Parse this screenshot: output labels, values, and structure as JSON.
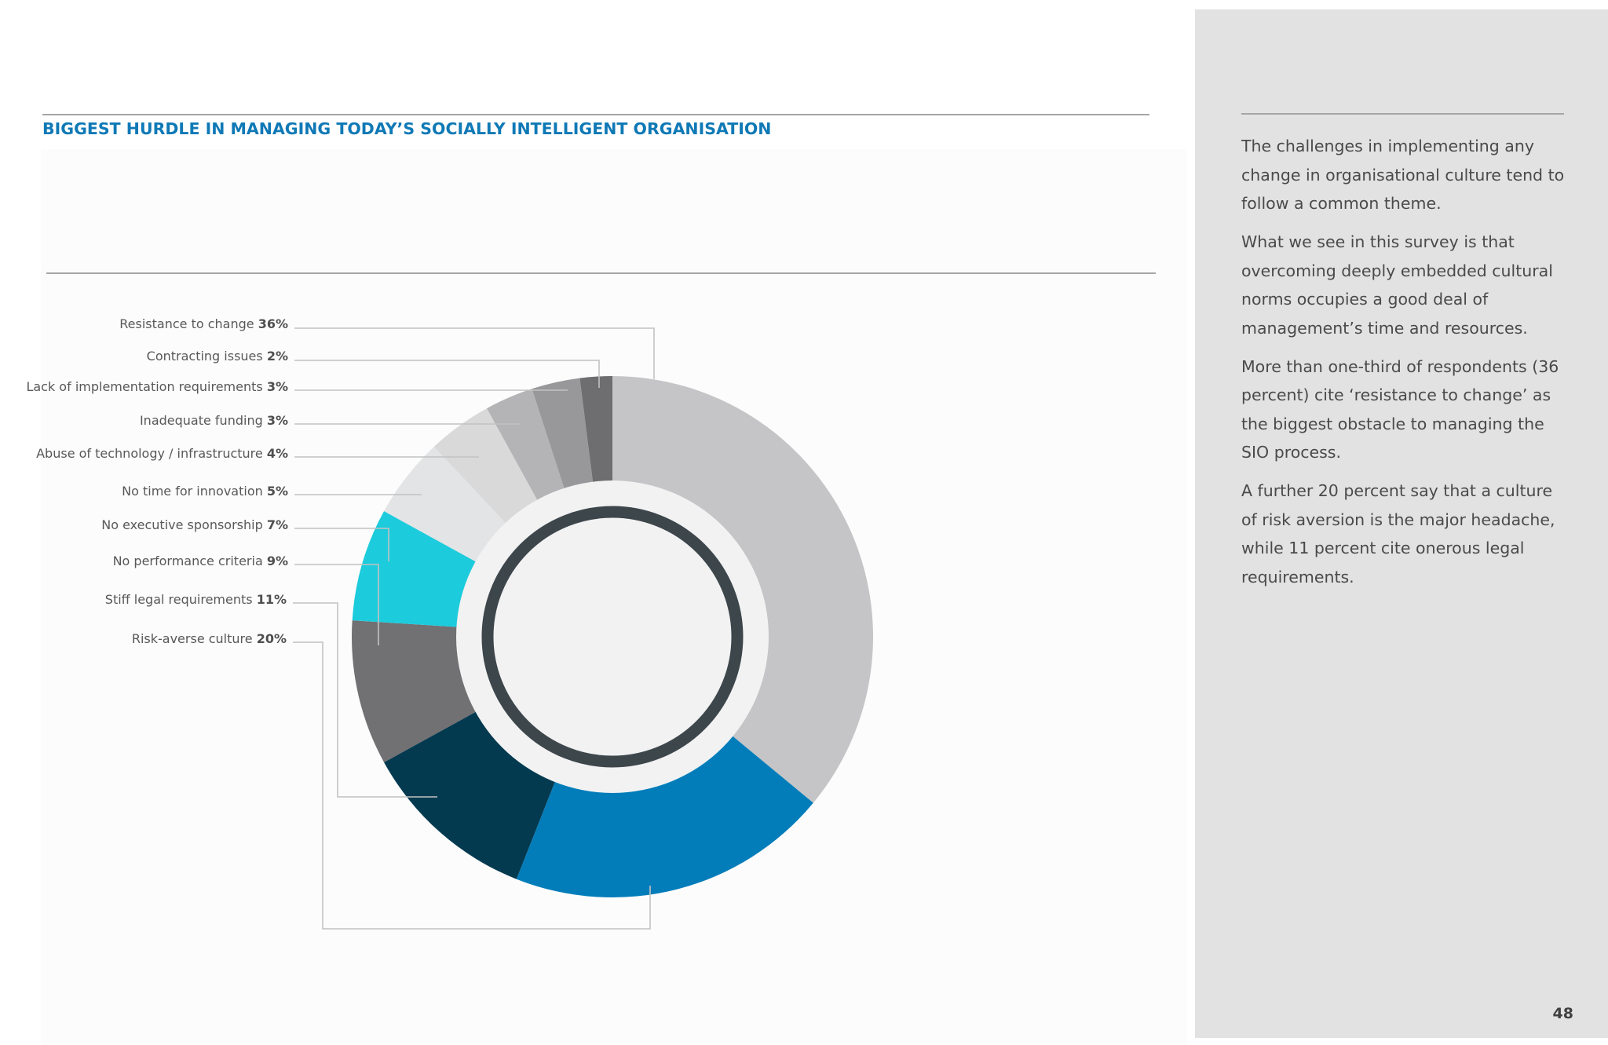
{
  "title": "BIGGEST HURDLE IN MANAGING TODAY’S SOCIALLY INTELLIGENT ORGANISATION",
  "sidebar": {
    "paragraphs": [
      "The challenges in implementing any change in organisational culture tend to follow a common theme.",
      "What we see in this survey is that overcoming deeply embedded cultural norms occupies a good deal of management’s time and resources.",
      "More than one-third of respondents (36 percent) cite ‘resistance to change’ as the biggest obstacle to managing the SIO process.",
      "A further 20 percent say that a culture of risk aversion is the major headache, while 11 percent cite onerous legal requirements."
    ]
  },
  "page_number": "48",
  "colors": {
    "title": "#0f79b6",
    "sidebar_bg": "#e2e2e3",
    "body_text": "#4a4a4a"
  },
  "chart_data": {
    "type": "donut",
    "series": [
      {
        "label": "Resistance to change",
        "value_label": "36%",
        "value": 36,
        "color": "#c5c5c7"
      },
      {
        "label": "Risk-averse culture",
        "value_label": "20%",
        "value": 20,
        "color": "#037dba"
      },
      {
        "label": "Stiff legal requirements",
        "value_label": "11%",
        "value": 11,
        "color": "#043a50"
      },
      {
        "label": "No performance criteria",
        "value_label": "9%",
        "value": 9,
        "color": "#717073"
      },
      {
        "label": "No executive sponsorship",
        "value_label": "7%",
        "value": 7,
        "color": "#1ccbdc"
      },
      {
        "label": "No time for innovation",
        "value_label": "5%",
        "value": 5,
        "color": "#e3e4e5"
      },
      {
        "label": "Abuse of technology / infrastructure",
        "value_label": "4%",
        "value": 4,
        "color": "#d9d9da"
      },
      {
        "label": "Inadequate funding",
        "value_label": "3%",
        "value": 3,
        "color": "#b4b4b6"
      },
      {
        "label": "Lack of implementation requirements",
        "value_label": "3%",
        "value": 3,
        "color": "#98989a"
      },
      {
        "label": "Contracting issues",
        "value_label": "2%",
        "value": 2,
        "color": "#6e6e70"
      }
    ],
    "label_order": [
      "Resistance to change",
      "Contracting issues",
      "Lack of implementation requirements",
      "Inadequate funding",
      "Abuse of technology / infrastructure",
      "No time for innovation",
      "No executive sponsorship",
      "No performance criteria",
      "Stiff legal requirements",
      "Risk-averse culture"
    ],
    "legend": "left, leader lines",
    "grid": false
  }
}
